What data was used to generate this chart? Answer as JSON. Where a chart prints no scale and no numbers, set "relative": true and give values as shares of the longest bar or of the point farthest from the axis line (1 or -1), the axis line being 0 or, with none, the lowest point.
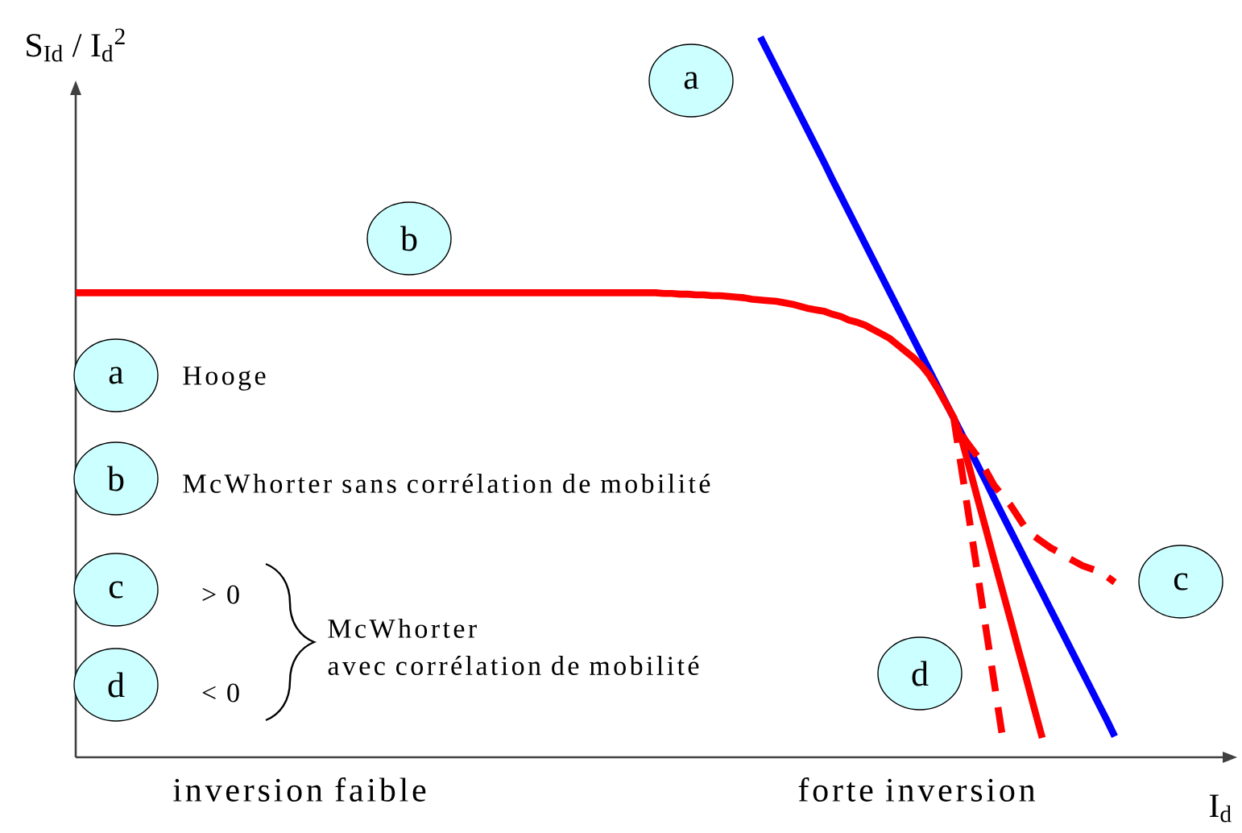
{
  "chart_data": {
    "type": "line",
    "relative": true,
    "line_style": "solid",
    "xlabel": "I$_{d}$",
    "ylabel": "S$_{Id}$ / I$_{d}$$^{2}$",
    "categories": [
      null,
      null,
      null,
      null,
      null,
      null,
      null,
      null,
      null,
      null,
      null,
      null,
      null,
      null,
      null,
      null,
      null,
      null,
      null,
      null,
      null,
      null,
      null,
      null,
      null,
      null,
      null,
      null,
      null,
      null,
      null,
      null,
      null,
      null,
      null,
      null,
      null,
      null,
      null,
      null,
      null,
      null,
      null,
      null,
      null,
      null,
      null,
      null,
      null,
      null,
      null,
      null,
      null,
      null,
      null,
      null,
      null,
      null,
      null,
      null,
      null,
      null,
      null,
      null,
      null,
      null,
      null,
      null,
      null,
      null,
      null,
      null,
      null,
      null,
      null,
      null,
      null,
      null,
      null,
      null,
      null,
      null,
      null,
      null,
      null,
      null,
      null,
      null,
      null,
      null,
      null,
      null,
      null,
      null,
      null,
      null,
      null,
      null,
      null,
      null,
      null,
      null,
      null,
      null,
      null,
      null,
      null,
      null,
      null,
      null,
      null,
      null,
      null,
      null,
      null,
      null,
      null,
      null,
      null,
      null,
      null,
      null,
      null,
      null,
      null,
      null,
      null,
      null,
      null,
      null
    ],
    "series": [
      {
        "name": "a",
        "color": "#0000ff",
        "values": [
          null,
          null,
          null,
          null,
          null,
          null,
          null,
          null,
          null,
          null,
          null,
          null,
          null,
          null,
          null,
          null,
          null,
          null,
          null,
          null,
          null,
          null,
          null,
          null,
          null,
          null,
          null,
          null,
          null,
          null,
          null,
          null,
          null,
          null,
          null,
          null,
          null,
          null,
          null,
          null,
          null,
          null,
          null,
          null,
          null,
          null,
          null,
          null,
          null,
          null,
          null,
          null,
          null,
          null,
          null,
          null,
          null,
          null,
          null,
          null,
          null,
          null,
          null,
          null,
          null,
          null,
          null,
          null,
          null,
          null,
          null,
          null,
          null,
          null,
          null,
          null,
          null,
          null,
          null,
          null,
          null,
          null,
          null,
          null,
          null,
          1.0,
          0.978,
          0.956,
          0.934,
          0.912,
          0.89,
          0.868,
          0.846,
          0.824,
          0.801,
          0.779,
          0.757,
          0.735,
          0.713,
          0.691,
          0.669,
          0.647,
          0.625,
          0.603,
          0.581,
          0.559,
          0.537,
          0.515,
          0.493,
          0.471,
          0.449,
          0.427,
          0.405,
          0.383,
          0.36,
          0.338,
          0.316,
          0.294,
          0.272,
          0.25,
          0.228,
          0.206,
          0.184,
          0.162,
          0.14,
          0.118,
          0.096,
          0.074,
          0.052,
          0.029
        ]
      },
      {
        "name": "b",
        "color": "#ff0000",
        "values": [
          0.645,
          0.645,
          0.645,
          0.645,
          0.645,
          0.645,
          0.645,
          0.645,
          0.645,
          0.645,
          0.645,
          0.645,
          0.645,
          0.645,
          0.645,
          0.645,
          0.645,
          0.645,
          0.645,
          0.645,
          0.645,
          0.645,
          0.645,
          0.645,
          0.645,
          0.645,
          0.645,
          0.645,
          0.645,
          0.645,
          0.645,
          0.645,
          0.645,
          0.645,
          0.645,
          0.645,
          0.645,
          0.645,
          0.645,
          0.645,
          0.645,
          0.645,
          0.645,
          0.645,
          0.645,
          0.645,
          0.645,
          0.645,
          0.645,
          0.645,
          0.645,
          0.645,
          0.645,
          0.645,
          0.645,
          0.645,
          0.645,
          0.645,
          0.645,
          0.645,
          0.645,
          0.645,
          0.645,
          0.645,
          0.645,
          0.645,
          0.645,
          0.645,
          0.645,
          0.645,
          0.645,
          0.645,
          0.645,
          0.644,
          0.644,
          0.643,
          0.643,
          0.642,
          0.642,
          0.641,
          0.641,
          0.64,
          0.639,
          0.638,
          0.636,
          0.635,
          0.634,
          0.633,
          0.631,
          0.629,
          0.626,
          0.623,
          0.621,
          0.619,
          0.615,
          0.612,
          0.607,
          0.604,
          0.6,
          0.594,
          0.588,
          0.582,
          0.573,
          0.564,
          0.555,
          0.544,
          0.53,
          0.512,
          0.492,
          0.472,
          0.441,
          0.4,
          0.358,
          0.317,
          0.275,
          0.234,
          0.193,
          0.151,
          0.11,
          0.068,
          0.027,
          null,
          null,
          null,
          null,
          null,
          null,
          null,
          null,
          null
        ]
      },
      {
        "name": "c",
        "color": "#ff0000",
        "line_style": "dashed",
        "values": [
          null,
          null,
          null,
          null,
          null,
          null,
          null,
          null,
          null,
          null,
          null,
          null,
          null,
          null,
          null,
          null,
          null,
          null,
          null,
          null,
          null,
          null,
          null,
          null,
          null,
          null,
          null,
          null,
          null,
          null,
          null,
          null,
          null,
          null,
          null,
          null,
          null,
          null,
          null,
          null,
          null,
          null,
          null,
          null,
          null,
          null,
          null,
          null,
          null,
          null,
          null,
          null,
          null,
          null,
          null,
          null,
          null,
          null,
          null,
          null,
          null,
          null,
          null,
          null,
          null,
          null,
          null,
          null,
          null,
          null,
          null,
          null,
          null,
          null,
          null,
          null,
          null,
          null,
          null,
          null,
          null,
          null,
          null,
          null,
          null,
          null,
          null,
          null,
          null,
          null,
          null,
          null,
          null,
          null,
          null,
          null,
          null,
          null,
          null,
          null,
          null,
          null,
          null,
          null,
          null,
          null,
          null,
          null,
          null,
          null,
          0.447,
          0.432,
          0.417,
          0.398,
          0.378,
          0.364,
          0.351,
          0.334,
          0.317,
          0.307,
          0.299,
          0.291,
          0.285,
          0.278,
          0.272,
          0.266,
          0.262,
          0.258,
          0.251,
          0.243
        ]
      },
      {
        "name": "d",
        "color": "#ff0000",
        "line_style": "dashed",
        "values": [
          null,
          null,
          null,
          null,
          null,
          null,
          null,
          null,
          null,
          null,
          null,
          null,
          null,
          null,
          null,
          null,
          null,
          null,
          null,
          null,
          null,
          null,
          null,
          null,
          null,
          null,
          null,
          null,
          null,
          null,
          null,
          null,
          null,
          null,
          null,
          null,
          null,
          null,
          null,
          null,
          null,
          null,
          null,
          null,
          null,
          null,
          null,
          null,
          null,
          null,
          null,
          null,
          null,
          null,
          null,
          null,
          null,
          null,
          null,
          null,
          null,
          null,
          null,
          null,
          null,
          null,
          null,
          null,
          null,
          null,
          null,
          null,
          null,
          null,
          null,
          null,
          null,
          null,
          null,
          null,
          null,
          null,
          null,
          null,
          null,
          null,
          null,
          null,
          null,
          null,
          null,
          null,
          null,
          null,
          null,
          null,
          null,
          null,
          null,
          null,
          null,
          null,
          null,
          null,
          null,
          null,
          null,
          null,
          null,
          0.472,
          0.399,
          0.326,
          0.253,
          0.179,
          0.106,
          0.033,
          null,
          null,
          null,
          null,
          null,
          null,
          null,
          null,
          null,
          null,
          null,
          null,
          null,
          null
        ]
      }
    ],
    "annotations": [
      "Hooge",
      "McWhorter sans corrélation de mobilité",
      "> 0",
      "< 0",
      "McWhorter",
      "avec corrélation de mobilité",
      "inversion faible",
      "forte inversion"
    ]
  }
}
